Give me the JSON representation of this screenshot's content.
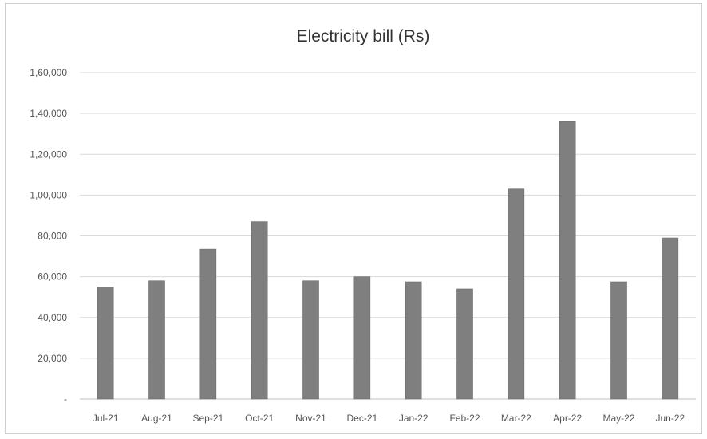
{
  "chart_data": {
    "type": "bar",
    "title": "Electricity bill (Rs)",
    "xlabel": "",
    "ylabel": "",
    "categories": [
      "Jul-21",
      "Aug-21",
      "Sep-21",
      "Oct-21",
      "Nov-21",
      "Dec-21",
      "Jan-22",
      "Feb-22",
      "Mar-22",
      "Apr-22",
      "May-22",
      "Jun-22"
    ],
    "values": [
      55000,
      58000,
      73500,
      87000,
      58000,
      60000,
      57500,
      54000,
      103000,
      136000,
      57500,
      79000
    ],
    "ylim": [
      0,
      160000
    ],
    "yticks": [
      0,
      20000,
      40000,
      60000,
      80000,
      100000,
      120000,
      140000,
      160000
    ],
    "ytick_labels": [
      "-",
      "20,000",
      "40,000",
      "60,000",
      "80,000",
      "1,00,000",
      "1,20,000",
      "1,40,000",
      "1,60,000"
    ],
    "grid": true,
    "legend": "none",
    "bar_color": "#7f7f7f"
  }
}
